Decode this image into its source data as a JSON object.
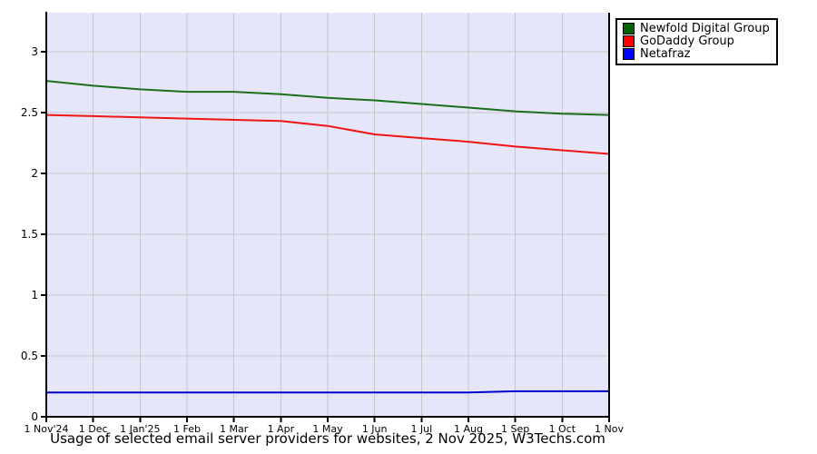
{
  "caption": "Usage of selected email server providers for websites, 2 Nov 2025, W3Techs.com",
  "colors": {
    "page_background": "#ffffff",
    "plot_background": "#e6e6fa",
    "grid": "#c6c6c6",
    "axis": "#000000",
    "text": "#000000"
  },
  "chart_data": {
    "type": "line",
    "title": "Usage of selected email server providers for websites, 2 Nov 2025, W3Techs.com",
    "xlabel": "",
    "ylabel": "",
    "x": [
      "1 Nov'24",
      "1 Dec",
      "1 Jan'25",
      "1 Feb",
      "1 Mar",
      "1 Apr",
      "1 May",
      "1 Jun",
      "1 Jul",
      "1 Aug",
      "1 Sep",
      "1 Oct",
      "1 Nov"
    ],
    "y_ticks": [
      0,
      0.5,
      1,
      1.5,
      2,
      2.5,
      3
    ],
    "ylim": [
      0,
      3.32
    ],
    "grid": true,
    "legend_position": "outside-top-right",
    "series": [
      {
        "name": "Newfold Digital Group",
        "color": "#006400",
        "line_color": "#1a701a",
        "values": [
          2.76,
          2.72,
          2.69,
          2.67,
          2.67,
          2.65,
          2.62,
          2.6,
          2.57,
          2.54,
          2.51,
          2.49,
          2.48
        ]
      },
      {
        "name": "GoDaddy Group",
        "color": "#ff0000",
        "line_color": "#f01414",
        "values": [
          2.48,
          2.47,
          2.46,
          2.45,
          2.44,
          2.43,
          2.39,
          2.32,
          2.29,
          2.26,
          2.22,
          2.19,
          2.16
        ]
      },
      {
        "name": "Netafraz",
        "color": "#0000ff",
        "line_color": "#0000cc",
        "values": [
          0.2,
          0.2,
          0.2,
          0.2,
          0.2,
          0.2,
          0.2,
          0.2,
          0.2,
          0.2,
          0.21,
          0.21,
          0.21
        ]
      }
    ]
  }
}
